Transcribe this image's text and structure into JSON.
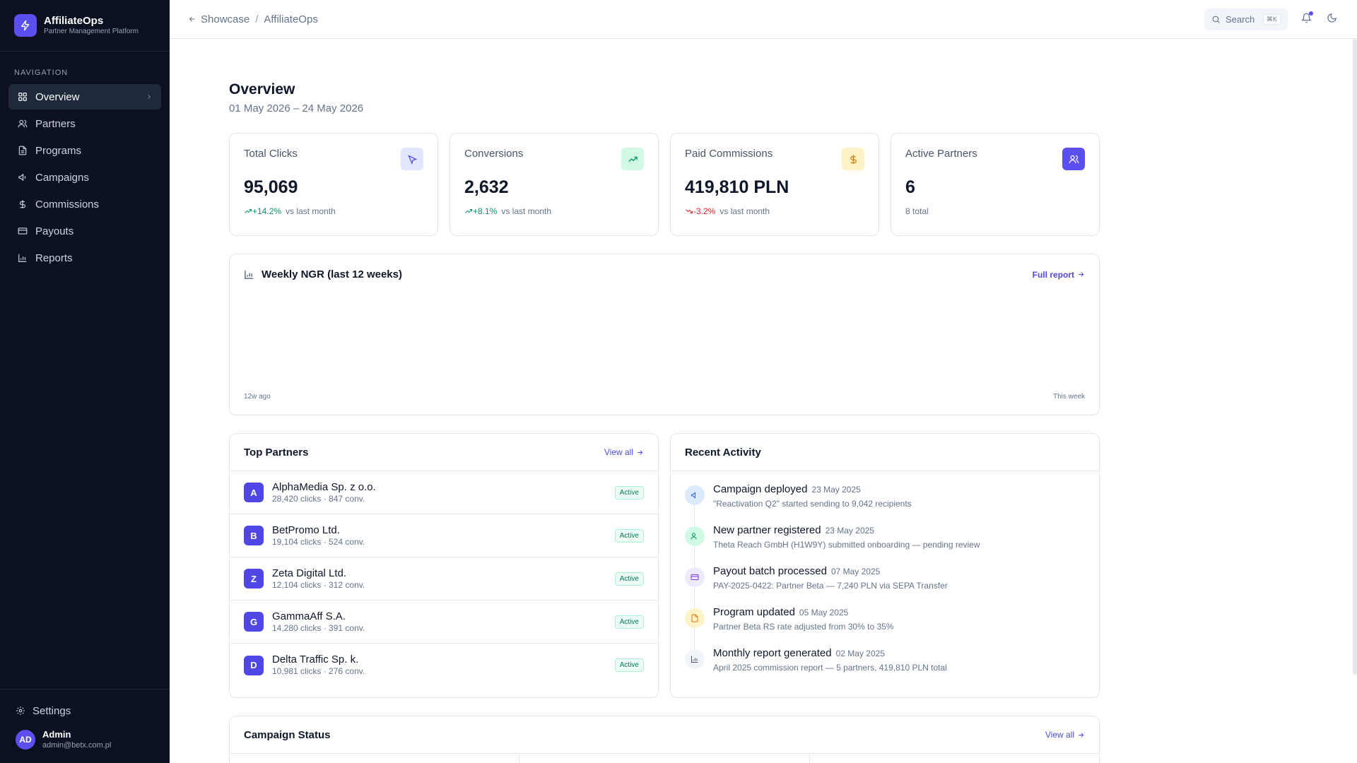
{
  "brand": {
    "name": "AffiliateOps",
    "subtitle": "Partner Management Platform",
    "accent": "#5b4ff0"
  },
  "sidebar": {
    "heading": "NAVIGATION",
    "items": [
      {
        "label": "Overview",
        "icon": "grid-icon",
        "active": true
      },
      {
        "label": "Partners",
        "icon": "users-icon"
      },
      {
        "label": "Programs",
        "icon": "file-icon"
      },
      {
        "label": "Campaigns",
        "icon": "megaphone-icon"
      },
      {
        "label": "Commissions",
        "icon": "dollar-icon"
      },
      {
        "label": "Payouts",
        "icon": "card-icon"
      },
      {
        "label": "Reports",
        "icon": "chart-icon"
      }
    ],
    "settings_label": "Settings",
    "user": {
      "initials": "AD",
      "name": "Admin",
      "email": "admin@betx.com.pl"
    }
  },
  "topbar": {
    "breadcrumb": [
      "Showcase",
      "AffiliateOps"
    ],
    "search_label": "Search",
    "search_shortcut": "⌘K"
  },
  "page": {
    "title": "Overview",
    "date_range": "01 May 2026 – 24 May 2026"
  },
  "stats": [
    {
      "label": "Total Clicks",
      "value": "95,069",
      "delta": "+14.2%",
      "trend": "up",
      "note": "vs last month",
      "icon": "cursor-icon",
      "icon_bg": "#e0e7ff",
      "icon_color": "#4f46e5"
    },
    {
      "label": "Conversions",
      "value": "2,632",
      "delta": "+8.1%",
      "trend": "up",
      "note": "vs last month",
      "icon": "trending-up-icon",
      "icon_bg": "#d1fae5",
      "icon_color": "#059669"
    },
    {
      "label": "Paid Commissions",
      "value": "419,810 PLN",
      "delta": "-3.2%",
      "trend": "down",
      "note": "vs last month",
      "icon": "dollar-icon",
      "icon_bg": "#fef3c7",
      "icon_color": "#d97706"
    },
    {
      "label": "Active Partners",
      "value": "6",
      "delta": "",
      "trend": "none",
      "note": "8 total",
      "icon": "users-icon",
      "icon_bg": "#5b4ff0",
      "icon_color": "#ffffff"
    }
  ],
  "chart": {
    "title": "Weekly NGR (last 12 weeks)",
    "link": "Full report",
    "x_start_label": "12w ago",
    "x_end_label": "This week"
  },
  "top_partners": {
    "title": "Top Partners",
    "link": "View all",
    "rows": [
      {
        "initial": "A",
        "name": "AlphaMedia Sp. z o.o.",
        "meta": "28,420 clicks · 847 conv.",
        "status": "Active"
      },
      {
        "initial": "B",
        "name": "BetPromo Ltd.",
        "meta": "19,104 clicks · 524 conv.",
        "status": "Active"
      },
      {
        "initial": "Z",
        "name": "Zeta Digital Ltd.",
        "meta": "12,104 clicks · 312 conv.",
        "status": "Active"
      },
      {
        "initial": "G",
        "name": "GammaAff S.A.",
        "meta": "14,280 clicks · 391 conv.",
        "status": "Active"
      },
      {
        "initial": "D",
        "name": "Delta Traffic Sp. k.",
        "meta": "10,981 clicks · 276 conv.",
        "status": "Active"
      }
    ]
  },
  "activity": {
    "title": "Recent Activity",
    "items": [
      {
        "title": "Campaign deployed",
        "date": "23 May 2025",
        "desc": "\"Reactivation Q2\" started sending to 9,042 recipients",
        "icon": "megaphone-icon",
        "bg": "#dbeafe",
        "color": "#2563eb"
      },
      {
        "title": "New partner registered",
        "date": "23 May 2025",
        "desc": "Theta Reach GmbH (H1W9Y) submitted onboarding — pending review",
        "icon": "users-icon",
        "bg": "#d1fae5",
        "color": "#059669"
      },
      {
        "title": "Payout batch processed",
        "date": "07 May 2025",
        "desc": "PAY-2025-0422: Partner Beta — 7,240 PLN via SEPA Transfer",
        "icon": "card-icon",
        "bg": "#ede9fe",
        "color": "#7c3aed"
      },
      {
        "title": "Program updated",
        "date": "05 May 2025",
        "desc": "Partner Beta RS rate adjusted from 30% to 35%",
        "icon": "file-icon",
        "bg": "#fef3c7",
        "color": "#d97706"
      },
      {
        "title": "Monthly report generated",
        "date": "02 May 2025",
        "desc": "April 2025 commission report — 5 partners, 419,810 PLN total",
        "icon": "chart-icon",
        "bg": "#f1f5f9",
        "color": "#475569"
      }
    ]
  },
  "campaign_status": {
    "title": "Campaign Status",
    "link": "View all"
  }
}
